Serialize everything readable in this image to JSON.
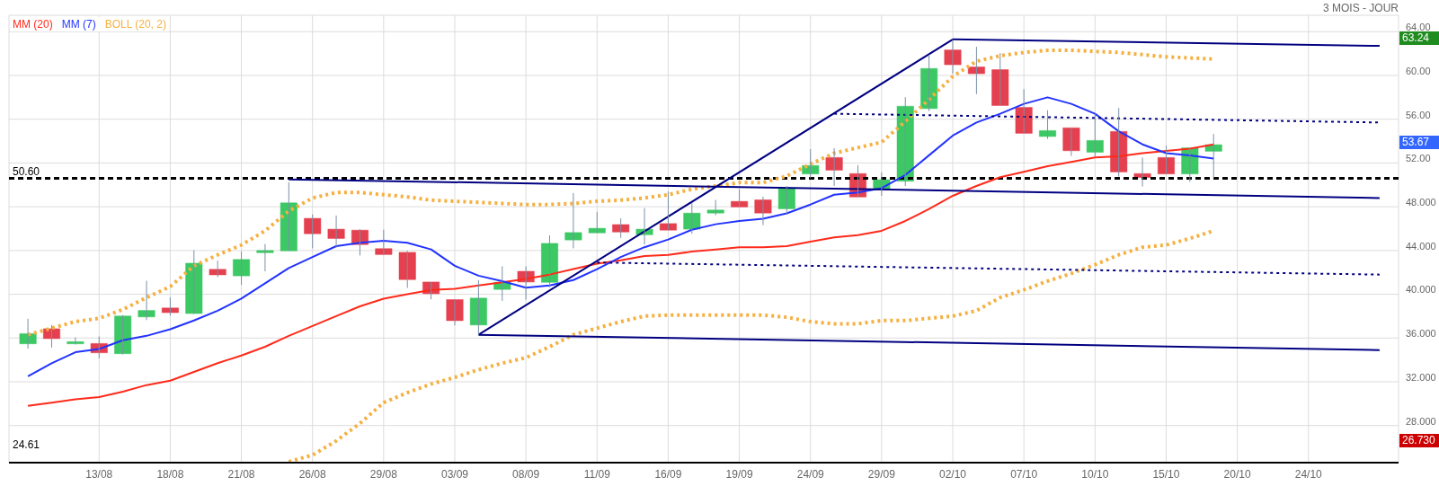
{
  "chart_data": {
    "type": "candlestick",
    "subtitle": "3 MOIS - JOUR",
    "categories": [
      null,
      null,
      null,
      "13/08",
      null,
      null,
      "18/08",
      null,
      null,
      "21/08",
      null,
      null,
      "26/08",
      null,
      null,
      "29/08",
      null,
      null,
      "03/09",
      null,
      null,
      "08/09",
      null,
      null,
      "11/09",
      null,
      null,
      "16/09",
      null,
      null,
      "19/09",
      null,
      null,
      "24/09",
      null,
      null,
      "29/09",
      null,
      null,
      "02/10",
      null,
      null,
      "07/10",
      null,
      null,
      "10/10",
      null,
      null,
      "15/10",
      null,
      null,
      "20/10",
      null,
      null,
      "24/10",
      null,
      null,
      null
    ],
    "ohlc": [
      [
        35.47,
        37.76,
        35.02,
        36.4
      ],
      [
        36.85,
        37.19,
        35.13,
        35.95
      ],
      [
        35.47,
        36.06,
        35.41,
        35.67
      ],
      [
        35.5,
        36.15,
        34.14,
        34.65
      ],
      [
        34.57,
        38.1,
        34.5,
        38.01
      ],
      [
        37.93,
        41.23,
        37.64,
        38.52
      ],
      [
        38.75,
        39.73,
        38.04,
        38.32
      ],
      [
        38.24,
        44.03,
        38.2,
        42.84
      ],
      [
        42.28,
        43.07,
        41.57,
        41.77
      ],
      [
        41.68,
        43.92,
        40.86,
        43.18
      ],
      [
        43.8,
        44.6,
        42.1,
        44.0
      ],
      [
        43.97,
        50.24,
        43.97,
        48.35
      ],
      [
        46.94,
        47.3,
        44.2,
        45.53
      ],
      [
        45.95,
        47.2,
        44.25,
        45.1
      ],
      [
        45.86,
        45.95,
        43.55,
        44.54
      ],
      [
        44.17,
        45.9,
        43.6,
        43.63
      ],
      [
        43.83,
        43.97,
        40.58,
        41.34
      ],
      [
        41.12,
        41.12,
        39.54,
        40.05
      ],
      [
        39.51,
        39.51,
        37.16,
        37.59
      ],
      [
        37.19,
        41.29,
        36.26,
        39.65
      ],
      [
        40.44,
        42.56,
        39.4,
        41.09
      ],
      [
        42.1,
        42.56,
        39.51,
        41.12
      ],
      [
        41.09,
        45.38,
        40.64,
        44.65
      ],
      [
        44.96,
        49.25,
        44.2,
        45.64
      ],
      [
        45.61,
        47.53,
        45.61,
        46.03
      ],
      [
        46.37,
        46.94,
        45.16,
        45.69
      ],
      [
        45.44,
        47.87,
        44.54,
        45.95
      ],
      [
        46.46,
        49.4,
        45.86,
        45.86
      ],
      [
        45.95,
        48.35,
        45.53,
        47.42
      ],
      [
        47.42,
        48.63,
        47.22,
        47.7
      ],
      [
        48.49,
        49.6,
        47.98,
        47.98
      ],
      [
        48.63,
        48.92,
        46.32,
        47.42
      ],
      [
        47.81,
        49.9,
        47.36,
        49.68
      ],
      [
        51.0,
        53.27,
        50.61,
        51.77
      ],
      [
        52.5,
        53.35,
        49.9,
        51.34
      ],
      [
        51.03,
        51.8,
        48.89,
        48.89
      ],
      [
        49.56,
        51.15,
        49.0,
        50.47
      ],
      [
        50.33,
        58.01,
        49.9,
        57.19
      ],
      [
        56.97,
        61.91,
        56.74,
        60.64
      ],
      [
        62.33,
        63.24,
        60.16,
        60.98
      ],
      [
        60.78,
        62.62,
        58.29,
        60.16
      ],
      [
        60.53,
        62.05,
        57.25,
        57.25
      ],
      [
        57.08,
        58.75,
        54.71,
        54.71
      ],
      [
        54.42,
        56.82,
        54.2,
        54.96
      ],
      [
        55.21,
        55.21,
        52.64,
        53.12
      ],
      [
        52.98,
        56.5,
        52.6,
        54.06
      ],
      [
        54.88,
        57.02,
        50.75,
        51.18
      ],
      [
        51.03,
        52.5,
        49.85,
        50.67
      ],
      [
        52.5,
        53.58,
        51.0,
        51.0
      ],
      [
        51.0,
        53.38,
        50.27,
        53.38
      ],
      [
        53.07,
        54.65,
        50.6,
        53.67
      ],
      null,
      null,
      null,
      null,
      null,
      null,
      null
    ],
    "colors": [
      "#3cc864",
      "#e5404f",
      "#3cc864",
      "#e5404f",
      "#3cc864",
      "#3cc864",
      "#e5404f",
      "#3cc864",
      "#e5404f",
      "#3cc864",
      "#3cc864",
      "#3cc864",
      "#e5404f",
      "#e5404f",
      "#e5404f",
      "#e5404f",
      "#e5404f",
      "#e5404f",
      "#e5404f",
      "#3cc864",
      "#3cc864",
      "#e5404f",
      "#3cc864",
      "#3cc864",
      "#3cc864",
      "#e5404f",
      "#3cc864",
      "#e5404f",
      "#3cc864",
      "#3cc864",
      "#e5404f",
      "#e5404f",
      "#3cc864",
      "#3cc864",
      "#e5404f",
      "#e5404f",
      "#3cc864",
      "#3cc864",
      "#3cc864",
      "#e5404f",
      "#e5404f",
      "#e5404f",
      "#e5404f",
      "#3cc864",
      "#e5404f",
      "#3cc864",
      "#e5404f",
      "#e5404f",
      "#e5404f",
      "#3cc864",
      "#3cc864",
      null,
      null,
      null,
      null,
      null,
      null,
      null
    ],
    "series": [
      {
        "name": "MM (20)",
        "type": "line",
        "color": "#ff2a1a",
        "values": [
          29.8,
          30.1,
          30.4,
          30.6,
          31.1,
          31.7,
          32.1,
          32.9,
          33.7,
          34.4,
          35.2,
          36.2,
          37.1,
          38.0,
          38.9,
          39.6,
          40.0,
          40.4,
          40.5,
          40.8,
          41.1,
          41.4,
          41.8,
          42.3,
          42.8,
          43.1,
          43.5,
          43.6,
          43.9,
          44.1,
          44.3,
          44.3,
          44.4,
          44.8,
          45.2,
          45.4,
          45.8,
          46.7,
          47.8,
          49.0,
          49.9,
          50.7,
          51.2,
          51.7,
          52.1,
          52.5,
          52.6,
          52.9,
          53.1,
          53.3,
          53.7,
          null,
          null,
          null,
          null,
          null,
          null,
          null
        ]
      },
      {
        "name": "MM (7)",
        "type": "line",
        "color": "#2233ff",
        "values": [
          32.5,
          33.7,
          34.7,
          35.0,
          35.8,
          36.2,
          36.8,
          37.6,
          38.5,
          39.6,
          41.0,
          42.4,
          43.4,
          44.4,
          44.7,
          44.9,
          44.7,
          44.1,
          42.6,
          41.7,
          41.2,
          40.6,
          40.8,
          41.3,
          42.3,
          43.4,
          44.3,
          45.0,
          45.9,
          46.4,
          46.7,
          46.9,
          47.4,
          48.2,
          49.1,
          49.3,
          49.7,
          50.9,
          52.7,
          54.5,
          55.7,
          56.5,
          57.4,
          58.0,
          57.4,
          56.5,
          54.9,
          53.7,
          52.9,
          52.7,
          52.4,
          null,
          null,
          null,
          null,
          null,
          null,
          null
        ]
      },
      {
        "name": "BOLL (20, 2)",
        "type": "line",
        "color": "#f5b040",
        "line_style": "dotted",
        "values": [
          36.3,
          36.9,
          37.5,
          37.8,
          38.6,
          39.7,
          40.7,
          42.6,
          43.6,
          44.5,
          45.8,
          47.6,
          48.8,
          49.3,
          49.3,
          49.1,
          48.9,
          48.6,
          48.5,
          48.4,
          48.3,
          48.2,
          48.2,
          48.3,
          48.5,
          48.6,
          48.8,
          49.1,
          49.6,
          49.9,
          50.2,
          50.2,
          50.8,
          51.9,
          52.9,
          53.4,
          53.9,
          55.8,
          57.8,
          59.9,
          61.3,
          61.8,
          62.1,
          62.3,
          62.3,
          62.2,
          62.1,
          61.9,
          61.7,
          61.6,
          61.5,
          null,
          null,
          null,
          null,
          null,
          null,
          null
        ]
      },
      {
        "type": "line",
        "color": "#f5b040",
        "line_style": "dotted",
        "values": [
          null,
          null,
          null,
          null,
          null,
          null,
          null,
          null,
          null,
          null,
          null,
          24.7,
          25.3,
          26.6,
          28.2,
          30.1,
          31.0,
          31.8,
          32.4,
          33.1,
          33.7,
          34.2,
          35.2,
          36.3,
          36.9,
          37.5,
          38.0,
          38.1,
          38.1,
          38.1,
          38.1,
          38.1,
          37.9,
          37.5,
          37.3,
          37.3,
          37.6,
          37.6,
          37.8,
          38.0,
          38.5,
          39.7,
          40.4,
          41.2,
          41.9,
          42.7,
          43.6,
          44.3,
          44.5,
          45.1,
          45.8,
          null,
          null,
          null,
          null,
          null,
          null,
          null
        ]
      },
      {
        "type": "line",
        "color": "#000080",
        "values": [
          null,
          null,
          null,
          null,
          null,
          null,
          null,
          null,
          null,
          null,
          null,
          50.5,
          null,
          null,
          null,
          null,
          null,
          null,
          null,
          null,
          null,
          null,
          null,
          null,
          null,
          null,
          null,
          null,
          null,
          null,
          null,
          null,
          null,
          null,
          null,
          null,
          null,
          null,
          null,
          null,
          null,
          null,
          null,
          null,
          null,
          null,
          null,
          null,
          null,
          null,
          null,
          null,
          null,
          null,
          null,
          null,
          null,
          48.8
        ]
      },
      {
        "type": "line",
        "color": "#000080",
        "values": [
          null,
          null,
          null,
          null,
          null,
          null,
          null,
          null,
          null,
          null,
          null,
          null,
          null,
          null,
          null,
          null,
          null,
          null,
          null,
          36.3,
          null,
          null,
          null,
          null,
          null,
          null,
          null,
          null,
          null,
          null,
          null,
          null,
          null,
          null,
          null,
          null,
          null,
          null,
          null,
          null,
          null,
          null,
          null,
          null,
          null,
          null,
          null,
          null,
          null,
          null,
          null,
          null,
          null,
          null,
          null,
          null,
          null,
          34.9
        ]
      },
      {
        "type": "line",
        "color": "#000080",
        "values": [
          null,
          null,
          null,
          null,
          null,
          null,
          null,
          null,
          null,
          null,
          null,
          null,
          null,
          null,
          null,
          null,
          null,
          null,
          null,
          36.3,
          null,
          null,
          null,
          null,
          null,
          null,
          null,
          null,
          null,
          null,
          null,
          null,
          null,
          null,
          null,
          null,
          null,
          null,
          null,
          63.3,
          null,
          null,
          null,
          null,
          null,
          null,
          null,
          null,
          null,
          null,
          null,
          null,
          null,
          null,
          null,
          null,
          null,
          null
        ]
      },
      {
        "type": "line",
        "color": "#000080",
        "values": [
          null,
          null,
          null,
          null,
          null,
          null,
          null,
          null,
          null,
          null,
          null,
          null,
          null,
          null,
          null,
          null,
          null,
          null,
          null,
          null,
          null,
          null,
          null,
          null,
          null,
          null,
          null,
          null,
          null,
          null,
          null,
          null,
          null,
          null,
          null,
          null,
          null,
          null,
          null,
          63.3,
          null,
          null,
          null,
          null,
          null,
          null,
          null,
          null,
          null,
          null,
          null,
          null,
          null,
          null,
          null,
          null,
          null,
          62.7
        ]
      },
      {
        "type": "line",
        "color": "#000080",
        "line_style": "dotted",
        "values": [
          null,
          null,
          null,
          null,
          null,
          null,
          null,
          null,
          null,
          null,
          null,
          null,
          null,
          null,
          null,
          null,
          null,
          null,
          null,
          null,
          null,
          null,
          null,
          null,
          42.9,
          null,
          null,
          null,
          null,
          null,
          null,
          null,
          null,
          null,
          null,
          null,
          null,
          null,
          null,
          null,
          null,
          null,
          null,
          null,
          null,
          null,
          null,
          null,
          null,
          null,
          null,
          null,
          null,
          null,
          null,
          null,
          null,
          41.8
        ]
      },
      {
        "type": "line",
        "color": "#000080",
        "line_style": "dotted",
        "values": [
          null,
          null,
          null,
          null,
          null,
          null,
          null,
          null,
          null,
          null,
          null,
          null,
          null,
          null,
          null,
          null,
          null,
          null,
          null,
          null,
          null,
          null,
          null,
          null,
          null,
          null,
          null,
          null,
          null,
          null,
          null,
          null,
          null,
          null,
          56.5,
          null,
          null,
          null,
          null,
          null,
          null,
          null,
          null,
          null,
          null,
          null,
          null,
          null,
          null,
          null,
          null,
          null,
          null,
          null,
          null,
          null,
          null,
          55.7
        ]
      }
    ],
    "ylim": [
      24.61,
      65.5
    ],
    "yticks": [
      {
        "value": 28,
        "label": "28.000"
      },
      {
        "value": 32,
        "label": "32.000"
      },
      {
        "value": 36,
        "label": "36.000"
      },
      {
        "value": 40,
        "label": "40.000"
      },
      {
        "value": 44,
        "label": "44.000"
      },
      {
        "value": 48,
        "label": "48.000"
      },
      {
        "value": 52,
        "label": "52.00"
      },
      {
        "value": 56,
        "label": "56.00"
      },
      {
        "value": 60,
        "label": "60.00"
      },
      {
        "value": 64,
        "label": "64.00"
      }
    ],
    "grid": true,
    "legend": "top left",
    "ref_lines": [
      {
        "axis": "y",
        "value": 50.6,
        "label": "50.60",
        "color": "#000000",
        "line_style": "dashed"
      }
    ],
    "annotations": [
      "24.61",
      "63.24",
      "53.67",
      "26.730"
    ]
  }
}
